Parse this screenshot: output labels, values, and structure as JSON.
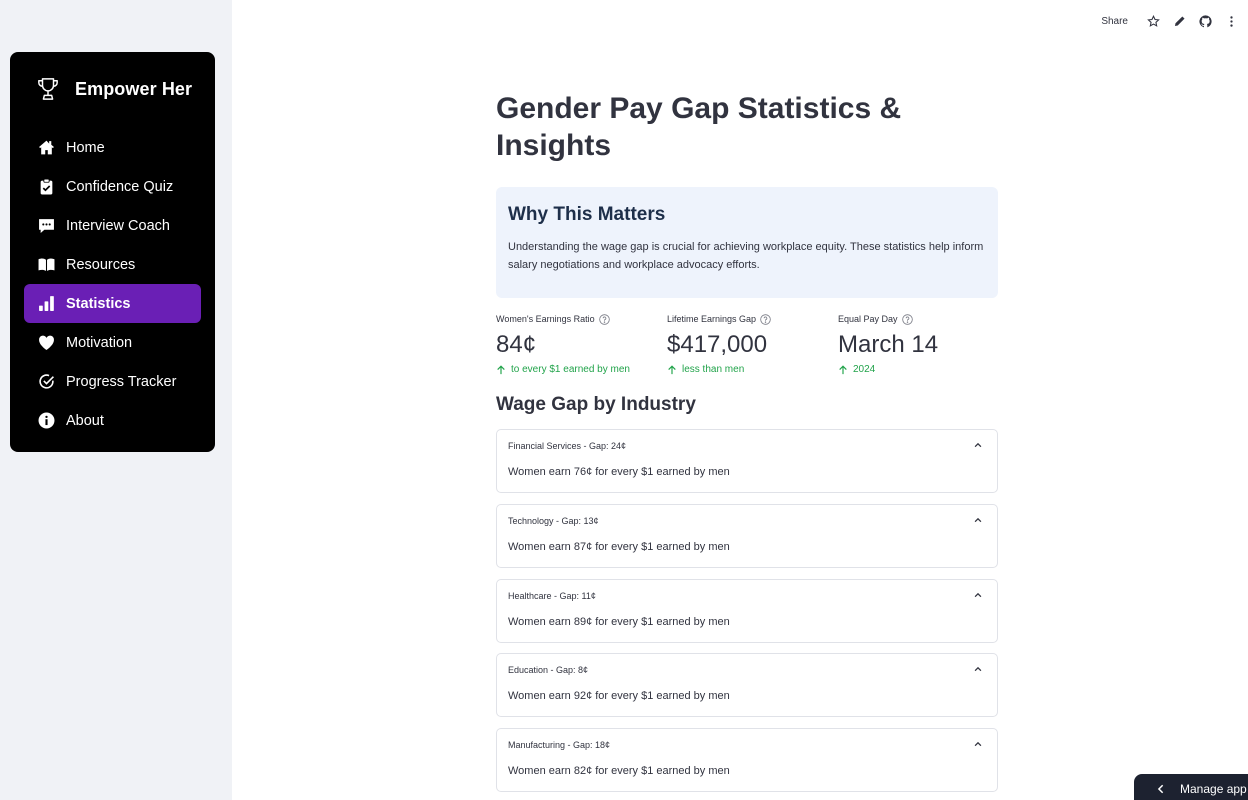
{
  "app": {
    "brand_name": "Empower Her"
  },
  "nav": {
    "items": [
      {
        "label": "Home",
        "icon": "home-icon"
      },
      {
        "label": "Confidence Quiz",
        "icon": "clipboard-check-icon"
      },
      {
        "label": "Interview Coach",
        "icon": "chat-icon"
      },
      {
        "label": "Resources",
        "icon": "book-icon"
      },
      {
        "label": "Statistics",
        "icon": "bar-chart-icon",
        "active": true
      },
      {
        "label": "Motivation",
        "icon": "heart-icon"
      },
      {
        "label": "Progress Tracker",
        "icon": "check-circle-icon"
      },
      {
        "label": "About",
        "icon": "info-icon"
      }
    ],
    "active_color": "#6a1fb5"
  },
  "toolbar": {
    "share_label": "Share"
  },
  "page": {
    "title": "Gender Pay Gap Statistics & Insights",
    "info": {
      "title": "Why This Matters",
      "text": "Understanding the wage gap is crucial for achieving workplace equity. These statistics help inform salary negotiations and workplace advocacy efforts."
    },
    "metrics": [
      {
        "label": "Women's Earnings Ratio",
        "value": "84¢",
        "delta": "to every $1 earned by men"
      },
      {
        "label": "Lifetime Earnings Gap",
        "value": "$417,000",
        "delta": "less than men"
      },
      {
        "label": "Equal Pay Day",
        "value": "March 14",
        "delta": "2024"
      }
    ],
    "section_title": "Wage Gap by Industry",
    "industries": [
      {
        "header": "Financial Services - Gap: 24¢",
        "body": "Women earn 76¢ for every $1 earned by men"
      },
      {
        "header": "Technology - Gap: 13¢",
        "body": "Women earn 87¢ for every $1 earned by men"
      },
      {
        "header": "Healthcare - Gap: 11¢",
        "body": "Women earn 89¢ for every $1 earned by men"
      },
      {
        "header": "Education - Gap: 8¢",
        "body": "Women earn 92¢ for every $1 earned by men"
      },
      {
        "header": "Manufacturing - Gap: 18¢",
        "body": "Women earn 82¢ for every $1 earned by men"
      }
    ]
  },
  "manage_app_label": "Manage app"
}
